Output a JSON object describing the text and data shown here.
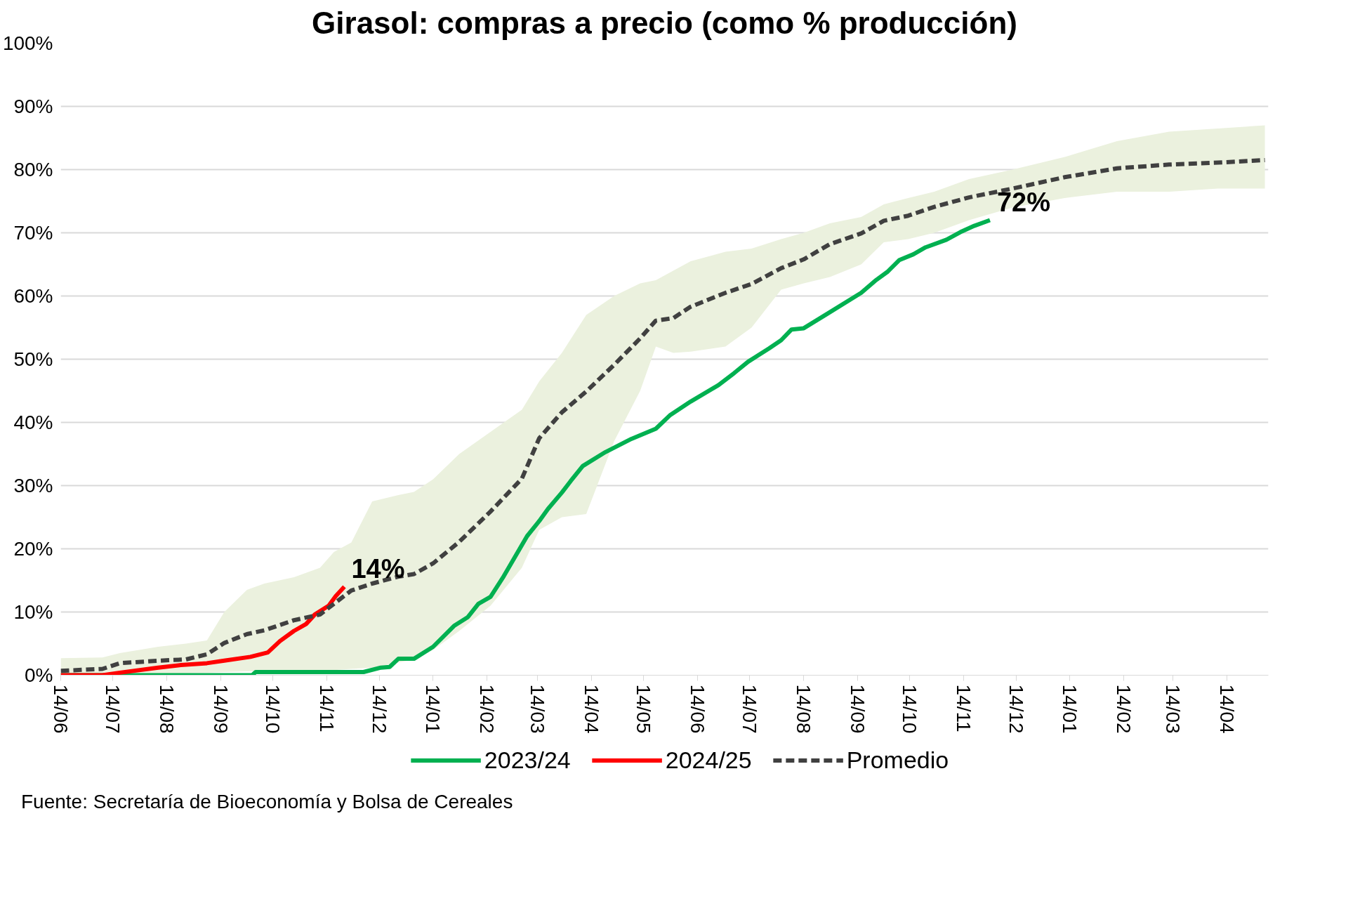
{
  "chart_data": {
    "type": "line",
    "title": "Girasol: compras a precio (como % producción)",
    "xlim": [
      "2023-06-14",
      "2025-05-08"
    ],
    "xticks": [
      {
        "value": "2023-06-14",
        "label": "14/06"
      },
      {
        "value": "2023-07-14",
        "label": "14/07"
      },
      {
        "value": "2023-08-14",
        "label": "14/08"
      },
      {
        "value": "2023-09-14",
        "label": "14/09"
      },
      {
        "value": "2023-10-14",
        "label": "14/10"
      },
      {
        "value": "2023-11-14",
        "label": "14/11"
      },
      {
        "value": "2023-12-14",
        "label": "14/12"
      },
      {
        "value": "2024-01-14",
        "label": "14/01"
      },
      {
        "value": "2024-02-14",
        "label": "14/02"
      },
      {
        "value": "2024-03-14",
        "label": "14/03"
      },
      {
        "value": "2024-04-14",
        "label": "14/04"
      },
      {
        "value": "2024-05-14",
        "label": "14/05"
      },
      {
        "value": "2024-06-14",
        "label": "14/06"
      },
      {
        "value": "2024-07-14",
        "label": "14/07"
      },
      {
        "value": "2024-08-14",
        "label": "14/08"
      },
      {
        "value": "2024-09-14",
        "label": "14/09"
      },
      {
        "value": "2024-10-14",
        "label": "14/10"
      },
      {
        "value": "2024-11-14",
        "label": "14/11"
      },
      {
        "value": "2024-12-14",
        "label": "14/12"
      },
      {
        "value": "2025-01-14",
        "label": "14/01"
      },
      {
        "value": "2025-02-14",
        "label": "14/02"
      },
      {
        "value": "2025-03-14",
        "label": "14/03"
      },
      {
        "value": "2025-04-14",
        "label": "14/04"
      }
    ],
    "ylim": [
      0,
      100
    ],
    "yticks": [
      {
        "value": 0,
        "label": "0%"
      },
      {
        "value": 10,
        "label": "10%"
      },
      {
        "value": 20,
        "label": "20%"
      },
      {
        "value": 30,
        "label": "30%"
      },
      {
        "value": 40,
        "label": "40%"
      },
      {
        "value": 50,
        "label": "50%"
      },
      {
        "value": 60,
        "label": "60%"
      },
      {
        "value": 70,
        "label": "70%"
      },
      {
        "value": 80,
        "label": "80%"
      },
      {
        "value": 90,
        "label": "90%"
      },
      {
        "value": 100,
        "label": "100%"
      }
    ],
    "grid": "y",
    "legend": "bottom",
    "marker": "none",
    "series": [
      {
        "name": "2023/24",
        "color": "#00b050",
        "line_style": "solid",
        "x": [
          "2023-06-14",
          "2023-10-02",
          "2023-10-04",
          "2023-12-05",
          "2023-12-15",
          "2023-12-20",
          "2023-12-25",
          "2024-01-03",
          "2024-01-14",
          "2024-01-26",
          "2024-02-03",
          "2024-02-09",
          "2024-02-16",
          "2024-02-23",
          "2024-03-08",
          "2024-03-15",
          "2024-03-20",
          "2024-03-28",
          "2024-04-02",
          "2024-04-09",
          "2024-04-22",
          "2024-05-07",
          "2024-05-21",
          "2024-05-29",
          "2024-06-10",
          "2024-06-26",
          "2024-07-05",
          "2024-07-13",
          "2024-07-25",
          "2024-08-01",
          "2024-08-07",
          "2024-08-14",
          "2024-08-27",
          "2024-09-16",
          "2024-09-24",
          "2024-10-01",
          "2024-10-08",
          "2024-10-16",
          "2024-10-23",
          "2024-11-04",
          "2024-11-12",
          "2024-11-20",
          "2024-11-29"
        ],
        "values": [
          0,
          0,
          0.5,
          0.5,
          1.2,
          1.3,
          2.6,
          2.6,
          4.5,
          7.8,
          9.2,
          11.3,
          12.4,
          15.4,
          22,
          24.4,
          26.3,
          28.9,
          30.7,
          33.1,
          35.3,
          37.4,
          39,
          41.1,
          43.3,
          45.9,
          47.8,
          49.6,
          51.7,
          53,
          54.7,
          54.9,
          57.1,
          60.5,
          62.4,
          63.8,
          65.7,
          66.6,
          67.7,
          68.9,
          70.1,
          71.1,
          72
        ]
      },
      {
        "name": "2024/25",
        "color": "#ff0000",
        "line_style": "solid",
        "x": [
          "2023-06-14",
          "2023-07-08",
          "2023-07-18",
          "2023-08-09",
          "2023-08-22",
          "2023-09-06",
          "2023-09-16",
          "2023-10-01",
          "2023-10-11",
          "2023-10-18",
          "2023-10-26",
          "2023-11-02",
          "2023-11-07",
          "2023-11-15",
          "2023-11-19",
          "2023-11-24"
        ],
        "values": [
          0,
          0,
          0.4,
          1.2,
          1.6,
          1.9,
          2.3,
          2.9,
          3.6,
          5.4,
          7,
          8.1,
          9.6,
          11,
          12.5,
          14
        ]
      },
      {
        "name": "Promedio",
        "color": "#404040",
        "line_style": "dashed",
        "x": [
          "2023-06-14",
          "2023-07-08",
          "2023-07-18",
          "2023-08-09",
          "2023-08-25",
          "2023-09-06",
          "2023-09-16",
          "2023-09-29",
          "2023-10-09",
          "2023-10-26",
          "2023-11-10",
          "2023-11-18",
          "2023-11-28",
          "2023-12-10",
          "2023-12-25",
          "2024-01-03",
          "2024-01-14",
          "2024-01-29",
          "2024-02-16",
          "2024-03-05",
          "2024-03-15",
          "2024-03-28",
          "2024-04-11",
          "2024-04-27",
          "2024-05-12",
          "2024-05-21",
          "2024-05-31",
          "2024-06-10",
          "2024-06-30",
          "2024-07-15",
          "2024-08-01",
          "2024-08-14",
          "2024-08-29",
          "2024-09-16",
          "2024-09-29",
          "2024-10-13",
          "2024-10-28",
          "2024-11-17",
          "2024-12-12",
          "2025-01-11",
          "2025-02-10",
          "2025-03-12",
          "2025-04-09",
          "2025-05-06"
        ],
        "values": [
          0.7,
          1,
          1.9,
          2.3,
          2.5,
          3.3,
          5.1,
          6.5,
          7.1,
          8.7,
          9.6,
          11.3,
          13.4,
          14.5,
          15.6,
          16,
          17.7,
          21.1,
          25.9,
          31.1,
          37.5,
          41.6,
          44.9,
          49.1,
          53.3,
          56.1,
          56.5,
          58.3,
          60.5,
          61.9,
          64.4,
          65.8,
          68.2,
          69.9,
          71.9,
          72.7,
          74.1,
          75.6,
          77,
          78.8,
          80.2,
          80.8,
          81.1,
          81.5
        ],
        "upper": [
          2.7,
          2.8,
          3.5,
          4.5,
          5,
          5.5,
          10,
          13.5,
          14.5,
          15.5,
          17,
          19.5,
          21,
          27.5,
          28.5,
          29,
          31,
          35,
          38.5,
          42,
          46.5,
          51,
          57,
          60,
          62,
          62.5,
          64,
          65.5,
          67,
          67.5,
          69,
          70,
          71.5,
          72.5,
          74.5,
          75.5,
          76.5,
          78.5,
          80,
          82,
          84.5,
          86,
          86.5,
          87
        ],
        "lower": [
          0,
          0,
          0,
          0.2,
          0.3,
          0.4,
          0.5,
          0.6,
          0.7,
          0.7,
          0.8,
          0.8,
          1,
          1.2,
          2,
          2.5,
          4,
          7,
          11,
          17,
          23,
          25,
          25.5,
          37,
          45,
          52,
          51,
          51.2,
          52,
          55,
          61,
          62,
          63,
          65,
          68.5,
          69,
          70,
          72,
          74,
          75.5,
          76.5,
          76.5,
          77,
          77
        ]
      }
    ],
    "annotations": [
      {
        "text": "72%",
        "x": "2024-11-29",
        "y": 72
      },
      {
        "text": "14%",
        "x": "2023-11-24",
        "y": 14
      },
      "Fuente: Secretaría de Bioeconomía y Bolsa de Cereales"
    ]
  }
}
